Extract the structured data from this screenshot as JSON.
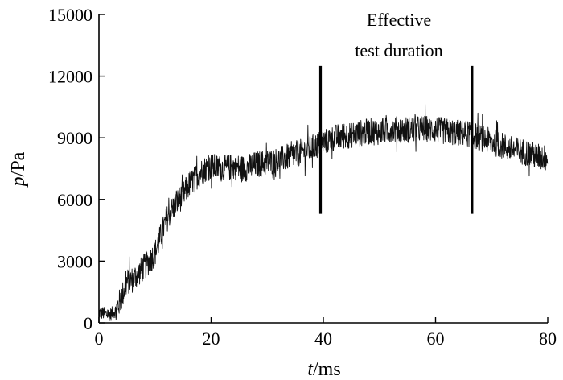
{
  "chart_data": {
    "type": "line",
    "title": "",
    "xlabel": {
      "var": "t",
      "unit": "/ms"
    },
    "ylabel": {
      "var": "p",
      "unit": "/Pa"
    },
    "xlim": [
      0,
      80
    ],
    "ylim": [
      0,
      15000
    ],
    "x_ticks": [
      0,
      20,
      40,
      60,
      80
    ],
    "y_ticks": [
      0,
      3000,
      6000,
      9000,
      12000,
      15000
    ],
    "grid": false,
    "legend": "none",
    "colors": {
      "line": "#111111",
      "axes": "#000000",
      "marker_lines": "#000000"
    },
    "noise_amplitude_pa": 650,
    "series": [
      {
        "x": [
          0,
          2,
          3,
          4,
          5,
          6,
          7,
          8,
          9,
          10,
          11,
          12,
          13,
          14,
          15,
          16,
          17,
          18,
          19,
          20,
          22,
          24,
          26,
          28,
          30,
          32,
          34,
          36,
          38,
          40,
          42,
          44,
          46,
          48,
          50,
          52,
          54,
          56,
          58,
          60,
          62,
          64,
          66,
          68,
          70,
          72,
          74,
          76,
          78,
          80
        ],
        "values": [
          500,
          400,
          600,
          1200,
          2000,
          2100,
          2400,
          2700,
          3000,
          3400,
          4200,
          5000,
          5500,
          5900,
          6200,
          6700,
          7000,
          7300,
          7500,
          7600,
          7500,
          7600,
          7500,
          7700,
          7800,
          7900,
          8100,
          8300,
          8500,
          8800,
          9000,
          9100,
          9200,
          9300,
          9300,
          9400,
          9400,
          9400,
          9450,
          9400,
          9300,
          9250,
          9200,
          9000,
          8800,
          8600,
          8400,
          8300,
          8100,
          8000
        ]
      }
    ],
    "annotations": [
      {
        "text_line1": "Effective",
        "text_line2": "test duration"
      }
    ],
    "markers": [
      {
        "x": 39.5,
        "y_from": 5300,
        "y_to": 12500
      },
      {
        "x": 66.5,
        "y_from": 5300,
        "y_to": 12500
      }
    ]
  }
}
